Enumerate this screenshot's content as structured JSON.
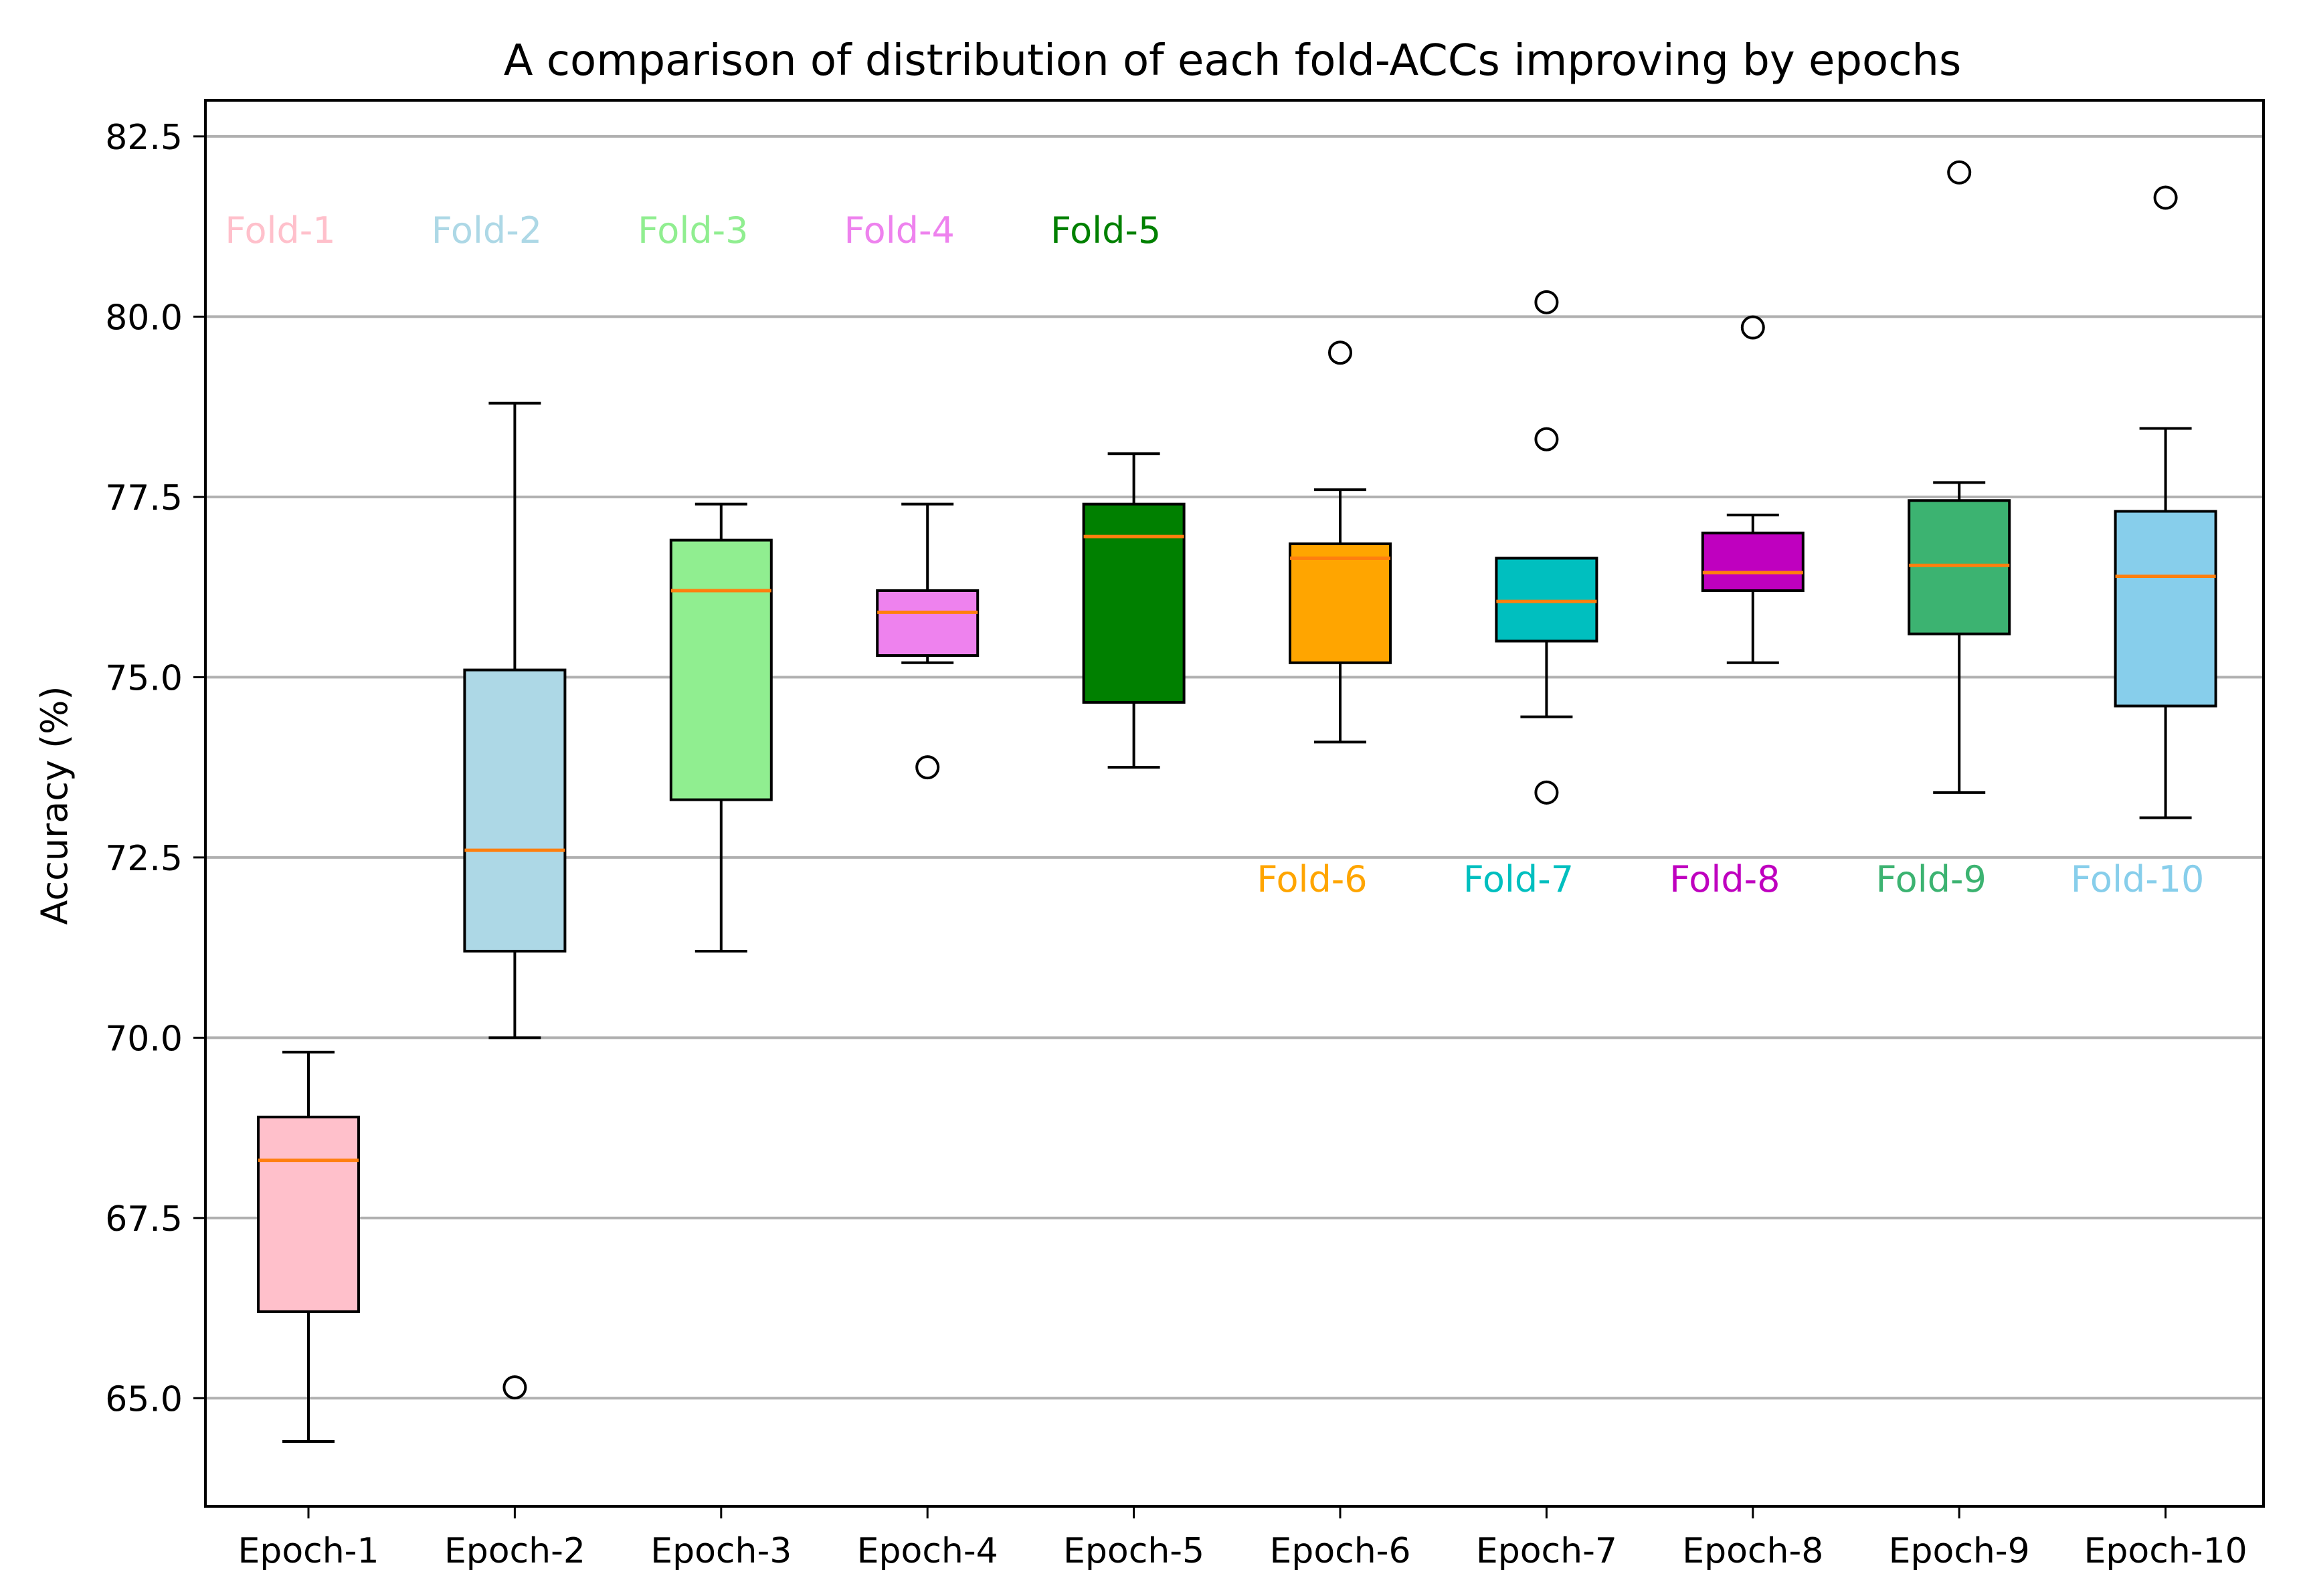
{
  "chart_data": {
    "type": "box",
    "title": "A comparison of distribution of each fold-ACCs improving by epochs",
    "xlabel": "",
    "ylabel": "Accuracy (%)",
    "ylim": [
      63.5,
      83.0
    ],
    "yticks": [
      65.0,
      67.5,
      70.0,
      72.5,
      75.0,
      77.5,
      80.0,
      82.5
    ],
    "ytick_labels": [
      "65.0",
      "67.5",
      "70.0",
      "72.5",
      "75.0",
      "77.5",
      "80.0",
      "82.5"
    ],
    "grid": "horizontal",
    "categories": [
      "Epoch-1",
      "Epoch-2",
      "Epoch-3",
      "Epoch-4",
      "Epoch-5",
      "Epoch-6",
      "Epoch-7",
      "Epoch-8",
      "Epoch-9",
      "Epoch-10"
    ],
    "boxes": [
      {
        "whisker_low": 64.4,
        "q1": 66.2,
        "median": 68.3,
        "q3": 68.9,
        "whisker_high": 69.8,
        "fliers": [],
        "color": "#ffc0cb"
      },
      {
        "whisker_low": 70.0,
        "q1": 71.2,
        "median": 72.6,
        "q3": 75.1,
        "whisker_high": 78.8,
        "fliers": [
          65.15
        ],
        "color": "#add8e6"
      },
      {
        "whisker_low": 71.2,
        "q1": 73.3,
        "median": 76.2,
        "q3": 76.9,
        "whisker_high": 77.4,
        "fliers": [],
        "color": "#90ee90"
      },
      {
        "whisker_low": 75.2,
        "q1": 75.3,
        "median": 75.9,
        "q3": 76.2,
        "whisker_high": 77.4,
        "fliers": [
          73.75
        ],
        "color": "#ee82ee"
      },
      {
        "whisker_low": 73.75,
        "q1": 74.65,
        "median": 76.95,
        "q3": 77.4,
        "whisker_high": 78.1,
        "fliers": [],
        "color": "#008000"
      },
      {
        "whisker_low": 74.1,
        "q1": 75.2,
        "median": 76.65,
        "q3": 76.85,
        "whisker_high": 77.6,
        "fliers": [
          79.5
        ],
        "color": "#ffa500"
      },
      {
        "whisker_low": 74.45,
        "q1": 75.5,
        "median": 76.05,
        "q3": 76.65,
        "whisker_high": 76.65,
        "fliers": [
          73.4,
          78.3,
          80.2
        ],
        "color": "#00bfbf"
      },
      {
        "whisker_low": 75.2,
        "q1": 76.2,
        "median": 76.45,
        "q3": 77.0,
        "whisker_high": 77.25,
        "fliers": [
          79.85
        ],
        "color": "#bf00bf"
      },
      {
        "whisker_low": 73.4,
        "q1": 75.6,
        "median": 76.55,
        "q3": 77.45,
        "whisker_high": 77.7,
        "fliers": [
          82.0
        ],
        "color": "#3cb371"
      },
      {
        "whisker_low": 73.05,
        "q1": 74.6,
        "median": 76.4,
        "q3": 77.3,
        "whisker_high": 78.45,
        "fliers": [
          81.65
        ],
        "color": "#87ceeb"
      }
    ],
    "annotations": [
      {
        "text": "Fold-1",
        "color": "#ffc0cb",
        "x_category": 1,
        "y": 81.2
      },
      {
        "text": "Fold-2",
        "color": "#add8e6",
        "x_category": 2,
        "y": 81.2
      },
      {
        "text": "Fold-3",
        "color": "#90ee90",
        "x_category": 3,
        "y": 81.2
      },
      {
        "text": "Fold-4",
        "color": "#ee82ee",
        "x_category": 4,
        "y": 81.2
      },
      {
        "text": "Fold-5",
        "color": "#008000",
        "x_category": 5,
        "y": 81.2
      },
      {
        "text": "Fold-6",
        "color": "#ffa500",
        "x_category": 6,
        "y": 72.2
      },
      {
        "text": "Fold-7",
        "color": "#00bfbf",
        "x_category": 7,
        "y": 72.2
      },
      {
        "text": "Fold-8",
        "color": "#bf00bf",
        "x_category": 8,
        "y": 72.2
      },
      {
        "text": "Fold-9",
        "color": "#3cb371",
        "x_category": 9,
        "y": 72.2
      },
      {
        "text": "Fold-10",
        "color": "#87ceeb",
        "x_category": 10,
        "y": 72.2
      }
    ],
    "median_color": "#ff7f0e"
  }
}
